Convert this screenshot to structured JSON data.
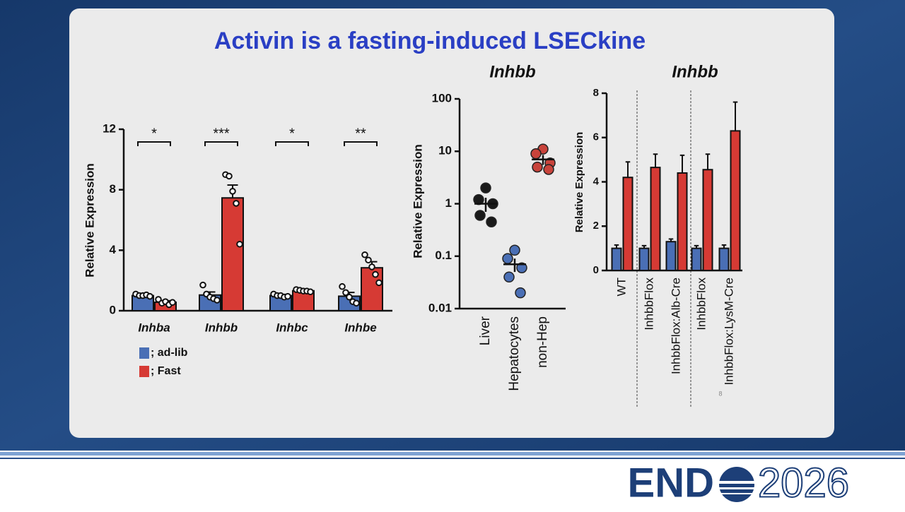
{
  "slide": {
    "title": "Activin is a fasting-induced LSECkine",
    "page_number": "8",
    "logo_left": "END",
    "logo_right": "2026"
  },
  "chart_data": [
    {
      "type": "bar",
      "y_label": "Relative Expression",
      "categories": [
        "Inhba",
        "Inhbb",
        "Inhbc",
        "Inhbe"
      ],
      "significance": [
        "*",
        "***",
        "*",
        "**"
      ],
      "series": [
        {
          "name": "; ad-lib",
          "color": "#4a6fb5",
          "values": [
            1.0,
            1.04,
            1.0,
            0.96
          ],
          "errors": [
            0.05,
            0.2,
            0.08,
            0.25
          ],
          "points": [
            [
              1.1,
              1.0,
              1.0,
              1.05,
              0.95
            ],
            [
              1.7,
              1.1,
              0.9,
              0.8,
              0.7
            ],
            [
              1.1,
              1.0,
              1.0,
              0.9,
              0.95
            ],
            [
              1.6,
              1.2,
              0.9,
              0.6,
              0.5
            ]
          ]
        },
        {
          "name": "; Fast",
          "color": "#d63a34",
          "values": [
            0.56,
            7.46,
            1.32,
            2.84
          ],
          "errors": [
            0.1,
            0.85,
            0.05,
            0.4
          ],
          "points": [
            [
              0.75,
              0.5,
              0.6,
              0.4,
              0.55
            ],
            [
              9.0,
              8.9,
              7.9,
              7.1,
              4.4
            ],
            [
              1.4,
              1.35,
              1.3,
              1.3,
              1.25
            ],
            [
              3.7,
              3.35,
              2.9,
              2.4,
              1.85
            ]
          ]
        }
      ],
      "ylim": [
        0,
        12
      ],
      "yticks": [
        0,
        4,
        8,
        12
      ]
    },
    {
      "type": "scatter",
      "title": "Inhbb",
      "y_label": "Relative Expression",
      "log_y": true,
      "categories": [
        "Liver",
        "Hepatocytes",
        "non-Hep"
      ],
      "colors": [
        "#1a1a1a",
        "#4a6fb5",
        "#c8433b"
      ],
      "points": [
        [
          2.0,
          1.2,
          1.0,
          0.6,
          0.45
        ],
        [
          0.13,
          0.09,
          0.06,
          0.04,
          0.02
        ],
        [
          11,
          9,
          6,
          5,
          4.5
        ]
      ],
      "means": [
        1.0,
        0.07,
        7.0
      ],
      "errors": [
        0.3,
        0.02,
        1.5
      ],
      "ylim": [
        0.01,
        100
      ],
      "yticks": [
        0.01,
        0.1,
        1,
        10,
        100
      ]
    },
    {
      "type": "bar",
      "title": "Inhbb",
      "y_label": "Relative Expression",
      "categories": [
        "WT",
        "InhbbFlox",
        "InhbbFlox:Alb-Cre",
        "InhbbFlox",
        "InhbbFlox:LysM-Cre"
      ],
      "series": [
        {
          "color": "#4a6fb5",
          "values": [
            1.0,
            1.0,
            1.3,
            1.0,
            1.0
          ],
          "errors": [
            0.15,
            0.12,
            0.12,
            0.12,
            0.15
          ]
        },
        {
          "color": "#d63a34",
          "values": [
            4.2,
            4.65,
            4.4,
            4.55,
            6.3
          ],
          "errors": [
            0.7,
            0.6,
            0.8,
            0.7,
            1.3
          ]
        }
      ],
      "ylim": [
        0,
        8
      ],
      "yticks": [
        0,
        2,
        4,
        6,
        8
      ]
    }
  ]
}
